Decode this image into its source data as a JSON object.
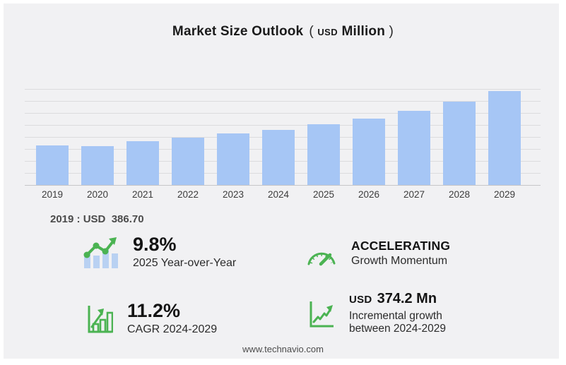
{
  "title": {
    "main": "Market Size Outlook",
    "paren_open": "(",
    "unit_small": "USD",
    "unit_big": "Million",
    "paren_close": ")"
  },
  "chart_data": {
    "type": "bar",
    "title": "Market Size Outlook (USD Million)",
    "unit": "USD Million",
    "categories": [
      "2019",
      "2020",
      "2021",
      "2022",
      "2023",
      "2024",
      "2025",
      "2026",
      "2027",
      "2028",
      "2029"
    ],
    "values": [
      386.7,
      380.2,
      427.0,
      461.0,
      500.0,
      534.4,
      586.8,
      645.0,
      715.0,
      805.0,
      908.6
    ],
    "xlabel": "",
    "ylabel": "",
    "ylim": [
      0,
      980
    ],
    "grid": true,
    "gridline_count": 8,
    "legend": "none",
    "bar_color": "#a6c6f5"
  },
  "annotation": {
    "label": "2019 : USD  386.70"
  },
  "stats": [
    {
      "icon": "yoy-trend-icon",
      "value": "9.8%",
      "caption": "2025 Year-over-Year"
    },
    {
      "icon": "speedometer-icon",
      "value": "ACCELERATING",
      "caption": "Growth Momentum"
    },
    {
      "icon": "cagr-bars-icon",
      "value": "11.2%",
      "caption": "CAGR 2024-2029"
    },
    {
      "icon": "incremental-growth-icon",
      "value_prefix": "USD",
      "value": "374.2 Mn",
      "caption": "Incremental growth between 2024-2029"
    }
  ],
  "footer": {
    "url": "www.technavio.com"
  },
  "colors": {
    "background": "#f1f1f3",
    "bar_blue": "#a6c6f5",
    "icon_bar_blue": "#b9d1f2",
    "accent_green": "#4bb352",
    "gridline": "#dcdcde",
    "text_dark": "#1b1b1b"
  }
}
